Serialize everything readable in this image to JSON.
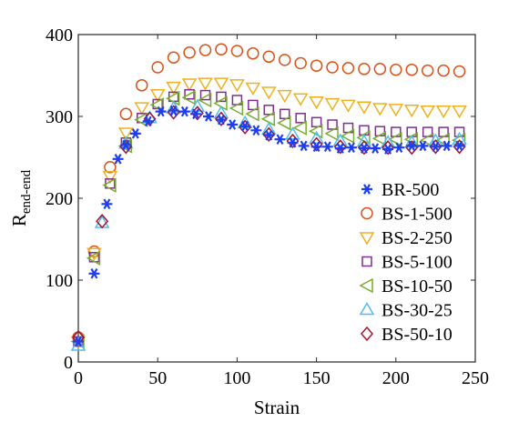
{
  "chart_data": {
    "type": "scatter",
    "title": "",
    "xlabel": "Strain",
    "ylabel_main": "R",
    "ylabel_sub": "end-end",
    "xlim": [
      0,
      250
    ],
    "ylim": [
      0,
      400
    ],
    "xticks": [
      0,
      50,
      100,
      150,
      200,
      250
    ],
    "yticks": [
      0,
      100,
      200,
      300,
      400
    ],
    "grid": false,
    "legend_position": "bottom-right",
    "series": [
      {
        "name": "BR-500",
        "marker": "asterisk",
        "color": "#1f3df0",
        "x": [
          0,
          10,
          18,
          25,
          30,
          36,
          44,
          52,
          60,
          67,
          74,
          82,
          90,
          97,
          105,
          112,
          120,
          127,
          135,
          142,
          150,
          157,
          165,
          172,
          180,
          187,
          195,
          202,
          210,
          217,
          225,
          232,
          240
        ],
        "y": [
          25,
          108,
          193,
          248,
          265,
          279,
          294,
          306,
          307,
          306,
          303,
          300,
          296,
          290,
          288,
          283,
          277,
          272,
          268,
          264,
          263,
          263,
          261,
          262,
          261,
          261,
          260,
          262,
          264,
          264,
          263,
          264,
          264
        ]
      },
      {
        "name": "BS-1-500",
        "marker": "circle",
        "color": "#d95319",
        "x": [
          0,
          10,
          20,
          30,
          40,
          50,
          60,
          70,
          80,
          90,
          100,
          110,
          120,
          130,
          140,
          150,
          160,
          170,
          180,
          190,
          200,
          210,
          220,
          230,
          240
        ],
        "y": [
          30,
          135,
          238,
          303,
          338,
          360,
          372,
          378,
          381,
          382,
          380,
          377,
          373,
          369,
          365,
          362,
          360,
          359,
          358,
          358,
          357,
          357,
          356,
          356,
          355
        ]
      },
      {
        "name": "BS-2-250",
        "marker": "triangle-down",
        "color": "#edb120",
        "x": [
          0,
          10,
          20,
          30,
          40,
          50,
          60,
          70,
          80,
          90,
          100,
          110,
          120,
          130,
          140,
          150,
          160,
          170,
          180,
          190,
          200,
          210,
          220,
          230,
          240
        ],
        "y": [
          25,
          133,
          227,
          280,
          311,
          327,
          336,
          340,
          341,
          341,
          339,
          335,
          330,
          326,
          322,
          318,
          316,
          314,
          312,
          310,
          309,
          308,
          307,
          307,
          307
        ]
      },
      {
        "name": "BS-5-100",
        "marker": "square",
        "color": "#7e2f8e",
        "x": [
          0,
          10,
          20,
          30,
          40,
          50,
          60,
          70,
          80,
          90,
          100,
          110,
          120,
          130,
          140,
          150,
          160,
          170,
          180,
          190,
          200,
          210,
          220,
          230,
          240
        ],
        "y": [
          25,
          128,
          218,
          268,
          298,
          315,
          324,
          327,
          326,
          324,
          320,
          314,
          308,
          303,
          298,
          293,
          290,
          286,
          283,
          282,
          281,
          281,
          281,
          281,
          281
        ]
      },
      {
        "name": "BS-10-50",
        "marker": "triangle-left",
        "color": "#77ac30",
        "x": [
          0,
          10,
          20,
          30,
          40,
          50,
          60,
          70,
          80,
          90,
          100,
          110,
          120,
          130,
          140,
          150,
          160,
          170,
          180,
          190,
          200,
          210,
          220,
          230,
          240
        ],
        "y": [
          25,
          127,
          216,
          264,
          296,
          314,
          322,
          323,
          320,
          316,
          310,
          303,
          297,
          292,
          286,
          282,
          279,
          276,
          274,
          273,
          272,
          272,
          271,
          271,
          271
        ]
      },
      {
        "name": "BS-30-25",
        "marker": "triangle-up",
        "color": "#4dbeee",
        "x": [
          0,
          15,
          30,
          45,
          60,
          75,
          90,
          105,
          120,
          135,
          150,
          165,
          180,
          195,
          210,
          225,
          240
        ],
        "y": [
          20,
          170,
          267,
          298,
          310,
          312,
          304,
          292,
          284,
          278,
          273,
          270,
          269,
          268,
          268,
          270,
          272
        ]
      },
      {
        "name": "BS-50-10",
        "marker": "diamond",
        "color": "#a2142f",
        "x": [
          0,
          15,
          30,
          45,
          60,
          75,
          90,
          105,
          120,
          135,
          150,
          165,
          180,
          195,
          210,
          225,
          240
        ],
        "y": [
          30,
          172,
          263,
          297,
          305,
          304,
          297,
          287,
          278,
          270,
          266,
          263,
          262,
          262,
          262,
          263,
          263
        ]
      }
    ]
  }
}
